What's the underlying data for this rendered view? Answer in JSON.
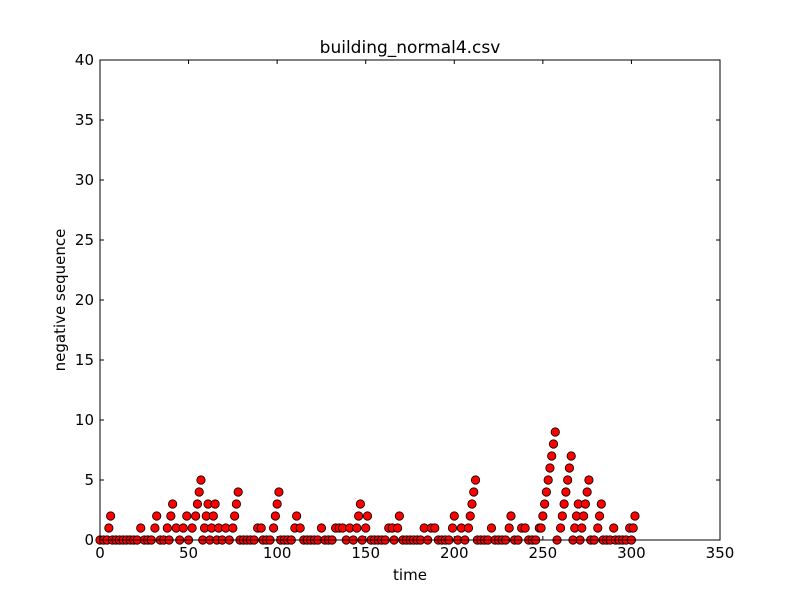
{
  "chart_data": {
    "type": "scatter",
    "title": "building_normal4.csv",
    "xlabel": "time",
    "ylabel": "negative sequence",
    "xlim": [
      0,
      350
    ],
    "ylim": [
      0,
      40
    ],
    "xticks": [
      0,
      50,
      100,
      150,
      200,
      250,
      300,
      350
    ],
    "yticks": [
      0,
      5,
      10,
      15,
      20,
      25,
      30,
      35,
      40
    ],
    "grid": false,
    "marker_color": "#ff0000",
    "marker_edge_color": "#000000",
    "points": [
      [
        0,
        0
      ],
      [
        2,
        0
      ],
      [
        4,
        0
      ],
      [
        5,
        1
      ],
      [
        6,
        2
      ],
      [
        7,
        0
      ],
      [
        9,
        0
      ],
      [
        11,
        0
      ],
      [
        13,
        0
      ],
      [
        15,
        0
      ],
      [
        17,
        0
      ],
      [
        19,
        0
      ],
      [
        21,
        0
      ],
      [
        23,
        1
      ],
      [
        25,
        0
      ],
      [
        27,
        0
      ],
      [
        29,
        0
      ],
      [
        31,
        1
      ],
      [
        32,
        2
      ],
      [
        34,
        0
      ],
      [
        36,
        0
      ],
      [
        38,
        1
      ],
      [
        39,
        0
      ],
      [
        40,
        2
      ],
      [
        41,
        3
      ],
      [
        43,
        1
      ],
      [
        45,
        0
      ],
      [
        47,
        1
      ],
      [
        49,
        2
      ],
      [
        50,
        0
      ],
      [
        52,
        1
      ],
      [
        54,
        2
      ],
      [
        55,
        3
      ],
      [
        56,
        4
      ],
      [
        57,
        5
      ],
      [
        58,
        0
      ],
      [
        59,
        1
      ],
      [
        60,
        2
      ],
      [
        61,
        3
      ],
      [
        62,
        0
      ],
      [
        63,
        1
      ],
      [
        64,
        2
      ],
      [
        65,
        3
      ],
      [
        66,
        0
      ],
      [
        67,
        1
      ],
      [
        69,
        0
      ],
      [
        71,
        1
      ],
      [
        73,
        0
      ],
      [
        75,
        1
      ],
      [
        76,
        2
      ],
      [
        77,
        3
      ],
      [
        78,
        4
      ],
      [
        79,
        0
      ],
      [
        81,
        0
      ],
      [
        83,
        0
      ],
      [
        85,
        0
      ],
      [
        87,
        0
      ],
      [
        89,
        1
      ],
      [
        91,
        1
      ],
      [
        92,
        0
      ],
      [
        94,
        0
      ],
      [
        96,
        0
      ],
      [
        98,
        1
      ],
      [
        99,
        2
      ],
      [
        100,
        3
      ],
      [
        101,
        4
      ],
      [
        102,
        0
      ],
      [
        104,
        0
      ],
      [
        106,
        0
      ],
      [
        108,
        0
      ],
      [
        110,
        1
      ],
      [
        111,
        2
      ],
      [
        113,
        1
      ],
      [
        115,
        0
      ],
      [
        117,
        0
      ],
      [
        119,
        0
      ],
      [
        121,
        0
      ],
      [
        123,
        0
      ],
      [
        125,
        1
      ],
      [
        127,
        0
      ],
      [
        129,
        0
      ],
      [
        131,
        0
      ],
      [
        133,
        1
      ],
      [
        135,
        1
      ],
      [
        137,
        1
      ],
      [
        139,
        0
      ],
      [
        141,
        1
      ],
      [
        143,
        0
      ],
      [
        145,
        1
      ],
      [
        146,
        2
      ],
      [
        147,
        3
      ],
      [
        148,
        0
      ],
      [
        150,
        1
      ],
      [
        151,
        2
      ],
      [
        153,
        0
      ],
      [
        155,
        0
      ],
      [
        157,
        0
      ],
      [
        159,
        0
      ],
      [
        161,
        0
      ],
      [
        163,
        1
      ],
      [
        165,
        1
      ],
      [
        166,
        0
      ],
      [
        168,
        1
      ],
      [
        169,
        2
      ],
      [
        171,
        0
      ],
      [
        173,
        0
      ],
      [
        175,
        0
      ],
      [
        177,
        0
      ],
      [
        179,
        0
      ],
      [
        181,
        0
      ],
      [
        183,
        1
      ],
      [
        185,
        0
      ],
      [
        187,
        1
      ],
      [
        189,
        1
      ],
      [
        191,
        0
      ],
      [
        193,
        0
      ],
      [
        195,
        0
      ],
      [
        197,
        0
      ],
      [
        199,
        1
      ],
      [
        200,
        2
      ],
      [
        202,
        0
      ],
      [
        204,
        1
      ],
      [
        206,
        0
      ],
      [
        208,
        1
      ],
      [
        209,
        2
      ],
      [
        210,
        3
      ],
      [
        211,
        4
      ],
      [
        212,
        5
      ],
      [
        213,
        0
      ],
      [
        215,
        0
      ],
      [
        217,
        0
      ],
      [
        219,
        0
      ],
      [
        221,
        1
      ],
      [
        223,
        0
      ],
      [
        225,
        0
      ],
      [
        227,
        0
      ],
      [
        229,
        0
      ],
      [
        231,
        1
      ],
      [
        232,
        2
      ],
      [
        234,
        0
      ],
      [
        236,
        0
      ],
      [
        238,
        1
      ],
      [
        240,
        1
      ],
      [
        242,
        0
      ],
      [
        244,
        0
      ],
      [
        246,
        0
      ],
      [
        248,
        1
      ],
      [
        249,
        1
      ],
      [
        250,
        2
      ],
      [
        251,
        3
      ],
      [
        252,
        4
      ],
      [
        253,
        5
      ],
      [
        254,
        6
      ],
      [
        255,
        7
      ],
      [
        256,
        8
      ],
      [
        257,
        9
      ],
      [
        258,
        0
      ],
      [
        260,
        1
      ],
      [
        261,
        2
      ],
      [
        262,
        3
      ],
      [
        263,
        4
      ],
      [
        264,
        5
      ],
      [
        265,
        6
      ],
      [
        266,
        7
      ],
      [
        267,
        0
      ],
      [
        268,
        1
      ],
      [
        269,
        2
      ],
      [
        270,
        3
      ],
      [
        271,
        0
      ],
      [
        272,
        1
      ],
      [
        273,
        2
      ],
      [
        274,
        3
      ],
      [
        275,
        4
      ],
      [
        276,
        5
      ],
      [
        277,
        0
      ],
      [
        279,
        0
      ],
      [
        281,
        1
      ],
      [
        282,
        2
      ],
      [
        283,
        3
      ],
      [
        284,
        0
      ],
      [
        286,
        0
      ],
      [
        288,
        0
      ],
      [
        290,
        1
      ],
      [
        291,
        0
      ],
      [
        293,
        0
      ],
      [
        295,
        0
      ],
      [
        297,
        0
      ],
      [
        299,
        1
      ],
      [
        300,
        0
      ],
      [
        301,
        1
      ],
      [
        302,
        2
      ]
    ]
  }
}
